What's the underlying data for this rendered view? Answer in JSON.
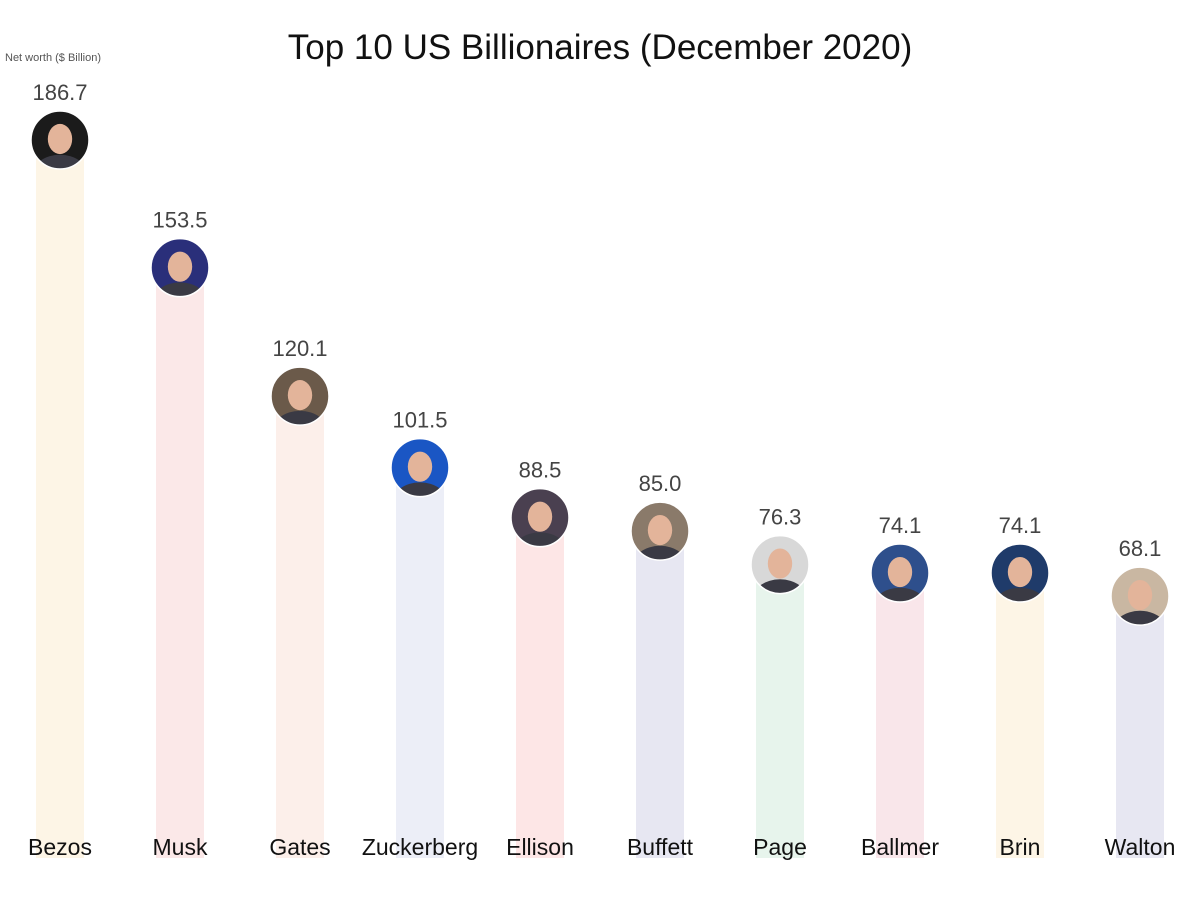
{
  "chart_data": {
    "type": "bar",
    "title": "Top 10 US Billionaires (December 2020)",
    "ylabel": "Net worth ($ Billion)",
    "xlabel": "",
    "categories": [
      "Bezos",
      "Musk",
      "Gates",
      "Zuckerberg",
      "Ellison",
      "Buffett",
      "Page",
      "Ballmer",
      "Brin",
      "Walton"
    ],
    "values": [
      186.7,
      153.5,
      120.1,
      101.5,
      88.5,
      85.0,
      76.3,
      74.1,
      74.1,
      68.1
    ],
    "value_labels": [
      "186.7",
      "153.5",
      "120.1",
      "101.5",
      "88.5",
      "85.0",
      "76.3",
      "74.1",
      "74.1",
      "68.1"
    ],
    "ylim": [
      0,
      186.7
    ],
    "grid": false,
    "legend": "none",
    "bar_colors": [
      "#fdf5e6",
      "#fbe8e8",
      "#fcefea",
      "#eceef7",
      "#fde6e6",
      "#e7e7f2",
      "#e7f4ec",
      "#f9e6ea",
      "#fdf5e6",
      "#e7e7f2"
    ],
    "avatar_icons": [
      "portrait-bezos-icon",
      "portrait-musk-icon",
      "portrait-gates-icon",
      "portrait-zuckerberg-icon",
      "portrait-ellison-icon",
      "portrait-buffett-icon",
      "portrait-page-icon",
      "portrait-ballmer-icon",
      "portrait-brin-icon",
      "portrait-walton-icon"
    ],
    "avatar_colors": [
      "#1b1b1b",
      "#2a2f7a",
      "#6b5a4a",
      "#1a56c4",
      "#4a4050",
      "#8a7a6a",
      "#d8d8d8",
      "#2e4f8c",
      "#1f3b6a",
      "#c9b7a2"
    ],
    "value_label_color": "#444444",
    "category_label_color": "#111111"
  }
}
